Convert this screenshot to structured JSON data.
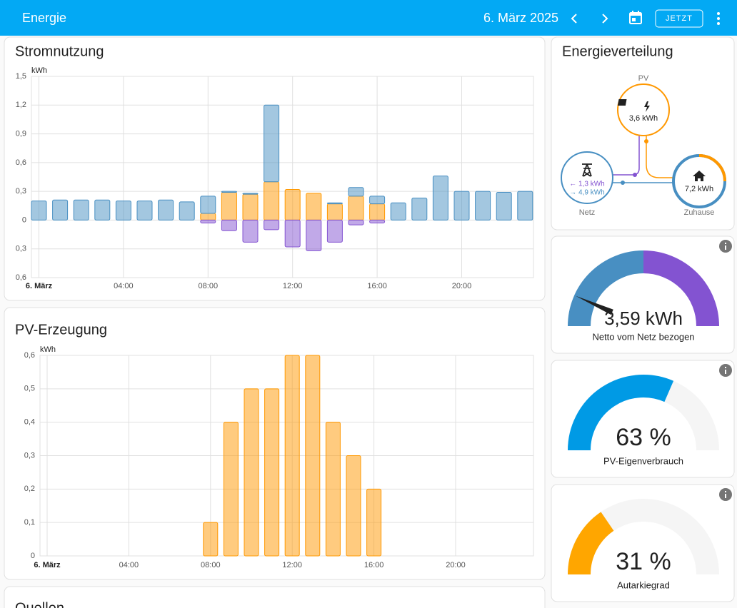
{
  "header": {
    "title": "Energie",
    "date": "6. März 2025",
    "button": "JETZT"
  },
  "chart_data": [
    {
      "type": "bar",
      "stacked": true,
      "title": "Stromnutzung",
      "y_label": "kWh",
      "categories": [
        "6. März",
        null,
        null,
        null,
        "04:00",
        null,
        null,
        null,
        "08:00",
        null,
        null,
        null,
        "12:00",
        null,
        null,
        null,
        "16:00",
        null,
        null,
        null,
        "20:00",
        null,
        null,
        null
      ],
      "series": [
        {
          "color": "#ff9800",
          "values": [
            0,
            0,
            0,
            0,
            0,
            0,
            0,
            0,
            0.07,
            0.29,
            0.27,
            0.4,
            0.32,
            0.28,
            0.17,
            0.25,
            0.17,
            0,
            0,
            0,
            0,
            0,
            0,
            0
          ]
        },
        {
          "color": "#488fc2",
          "values": [
            0.2,
            0.21,
            0.21,
            0.21,
            0.2,
            0.2,
            0.21,
            0.19,
            0.18,
            0.01,
            0.01,
            0.8,
            0,
            0,
            0.01,
            0.09,
            0.08,
            0.18,
            0.23,
            0.46,
            0.3,
            0.3,
            0.29,
            0.3
          ]
        },
        {
          "color": "#8353d1",
          "values": [
            0,
            0,
            0,
            0,
            0,
            0,
            0,
            0,
            -0.03,
            -0.11,
            -0.23,
            -0.1,
            -0.28,
            -0.32,
            -0.23,
            -0.05,
            -0.03,
            0,
            0,
            0,
            0,
            0,
            0,
            0
          ]
        }
      ],
      "ylim": [
        -0.6,
        1.5
      ],
      "yticks": [
        {
          "value": 1.5,
          "label": "1,5"
        },
        {
          "value": 1.2,
          "label": "1,2"
        },
        {
          "value": 0.9,
          "label": "0,9"
        },
        {
          "value": 0.6,
          "label": "0,6"
        },
        {
          "value": 0.3,
          "label": "0,3"
        },
        0,
        {
          "value": -0.3,
          "label": "0,3"
        },
        {
          "value": -0.6,
          "label": "0,6"
        }
      ],
      "grid": true
    },
    {
      "type": "bar",
      "title": "PV-Erzeugung",
      "y_label": "kWh",
      "categories": [
        "6. März",
        null,
        null,
        null,
        "04:00",
        null,
        null,
        null,
        "08:00",
        null,
        null,
        null,
        "12:00",
        null,
        null,
        null,
        "16:00",
        null,
        null,
        null,
        "20:00",
        null,
        null,
        null
      ],
      "values": [
        0,
        0,
        0,
        0,
        0,
        0,
        0,
        0,
        0.1,
        0.4,
        0.5,
        0.5,
        0.6,
        0.6,
        0.4,
        0.3,
        0.2,
        0,
        0,
        0,
        0,
        0,
        0,
        0
      ],
      "color": "#ff9800",
      "ylim": [
        0,
        0.6
      ],
      "yticks": [
        {
          "value": 0.6,
          "label": "0,6"
        },
        {
          "value": 0.5,
          "label": "0,5"
        },
        {
          "value": 0.4,
          "label": "0,4"
        },
        {
          "value": 0.3,
          "label": "0,3"
        },
        {
          "value": 0.2,
          "label": "0,2"
        },
        {
          "value": 0.1,
          "label": "0,1"
        },
        0
      ],
      "grid": true
    }
  ],
  "distribution": {
    "title": "Energieverteilung",
    "pv": {
      "label": "PV",
      "value": "3,6 kWh"
    },
    "grid": {
      "label": "Netz",
      "returned": "← 1,3 kWh",
      "consumed": "→ 4,9 kWh"
    },
    "home": {
      "label": "Zuhause",
      "value": "7,2 kWh"
    }
  },
  "gauges": [
    {
      "value": 3.59,
      "value_label": "3,59 kWh",
      "title": "Netto vom Netz bezogen",
      "lim": [
        4.9,
        -4.9
      ],
      "colors": [
        "#488fc2",
        "#8353d1"
      ]
    },
    {
      "value": 63,
      "value_label": "63 %",
      "title": "PV-Eigenverbrauch",
      "lim": [
        0,
        100
      ],
      "color": "#009ae5"
    },
    {
      "value": 31,
      "value_label": "31 %",
      "title": "Autarkiegrad",
      "lim": [
        0,
        100
      ],
      "color": "#ffa600"
    }
  ],
  "sources": {
    "title": "Quellen"
  }
}
